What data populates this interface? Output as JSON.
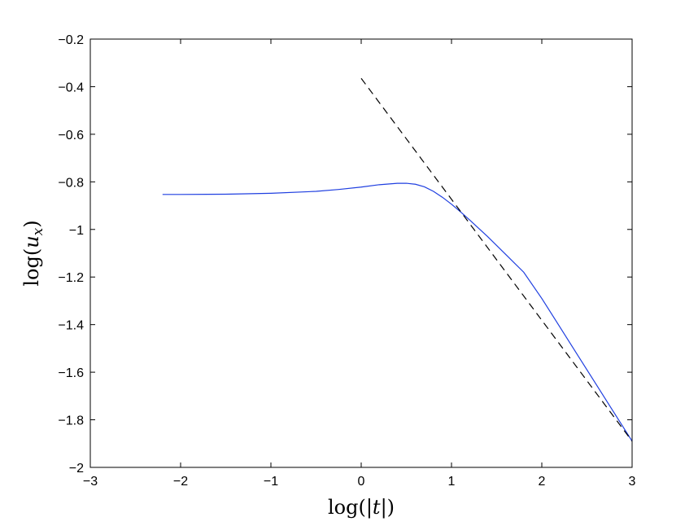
{
  "chart_data": {
    "type": "line",
    "xlabel": {
      "fn": "log",
      "open": "(|",
      "var": "t",
      "close": "|)"
    },
    "ylabel": {
      "fn": "log",
      "open": "(",
      "var": "u",
      "sub": "x",
      "close": ")"
    },
    "xlim": [
      -3,
      3
    ],
    "ylim": [
      -2,
      -0.2
    ],
    "xticks": [
      -3,
      -2,
      -1,
      0,
      1,
      2,
      3
    ],
    "yticks": [
      -2,
      -1.8,
      -1.6,
      -1.4,
      -1.2,
      -1,
      -0.8,
      -0.6,
      -0.4,
      -0.2
    ],
    "xtick_labels": [
      "−3",
      "−2",
      "−1",
      "0",
      "1",
      "2",
      "3"
    ],
    "ytick_labels": [
      "−2",
      "−1.8",
      "−1.6",
      "−1.4",
      "−1.2",
      "−1",
      "−0.8",
      "−0.6",
      "−0.4",
      "−0.2"
    ],
    "grid": false,
    "series": [
      {
        "style": "solid",
        "color": "#1f3fe0",
        "x": [
          -2.2,
          -2.0,
          -1.5,
          -1.0,
          -0.5,
          -0.25,
          0.0,
          0.2,
          0.4,
          0.5,
          0.6,
          0.7,
          0.8,
          0.9,
          1.0,
          1.1,
          1.2,
          1.4,
          1.6,
          1.8,
          2.0,
          2.2,
          2.4,
          2.6,
          2.8,
          3.0
        ],
        "y": [
          -0.853,
          -0.853,
          -0.852,
          -0.848,
          -0.84,
          -0.832,
          -0.822,
          -0.812,
          -0.806,
          -0.806,
          -0.81,
          -0.821,
          -0.84,
          -0.865,
          -0.894,
          -0.926,
          -0.96,
          -1.03,
          -1.105,
          -1.18,
          -1.29,
          -1.41,
          -1.53,
          -1.65,
          -1.77,
          -1.89
        ]
      },
      {
        "style": "dashed",
        "color": "#000000",
        "x": [
          0.0,
          3.0
        ],
        "y": [
          -0.365,
          -1.89
        ]
      }
    ]
  }
}
